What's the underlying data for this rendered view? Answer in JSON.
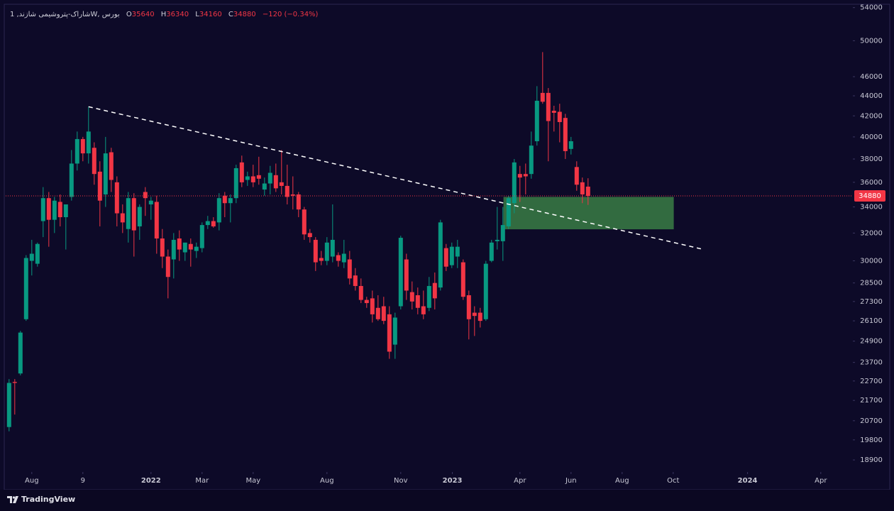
{
  "chart_data": {
    "type": "candlestick",
    "symbol": "شاراک-پتروشیمی شازند, 1W, بورس",
    "ohlc_labels": [
      "O",
      "H",
      "L",
      "C"
    ],
    "change_text": "−120 (−0.34%)",
    "up_color": "#089981",
    "down_color": "#f23645",
    "log_scale": true,
    "xlim": [
      -0.6,
      148.4
    ],
    "ylim": [
      18380,
      54240
    ],
    "xticks": [
      {
        "value": 4,
        "label": "Aug"
      },
      {
        "value": 13,
        "label": "9"
      },
      {
        "value": 25,
        "label": "2022"
      },
      {
        "value": 34,
        "label": "Mar"
      },
      {
        "value": 43,
        "label": "May"
      },
      {
        "value": 56,
        "label": "Aug"
      },
      {
        "value": 69,
        "label": "Nov"
      },
      {
        "value": 78.1,
        "label": "2023"
      },
      {
        "value": 90,
        "label": "Apr"
      },
      {
        "value": 99,
        "label": "Jun"
      },
      {
        "value": 108,
        "label": "Aug"
      },
      {
        "value": 117,
        "label": "Oct"
      },
      {
        "value": 130.1,
        "label": "2024"
      },
      {
        "value": 143,
        "label": "Apr"
      }
    ],
    "yticks": [
      18900,
      19800,
      20700,
      21700,
      22700,
      23700,
      24900,
      26100,
      27300,
      28500,
      30000,
      32000,
      34000,
      36000,
      38000,
      40000,
      42000,
      44000,
      46000,
      50000,
      54000
    ],
    "ohlc": [
      [
        20400,
        22800,
        20200,
        22600
      ],
      [
        22650,
        22800,
        21000,
        22600
      ],
      [
        23100,
        25500,
        23000,
        25400
      ],
      [
        26200,
        30400,
        26100,
        30200
      ],
      [
        30000,
        31500,
        29000,
        30500
      ],
      [
        29800,
        31300,
        29600,
        31200
      ],
      [
        32900,
        35600,
        31700,
        34700
      ],
      [
        34700,
        35200,
        31000,
        33000
      ],
      [
        33000,
        34800,
        32000,
        34500
      ],
      [
        34400,
        35000,
        32500,
        33200
      ],
      [
        33200,
        34000,
        30800,
        34200
      ],
      [
        34800,
        38800,
        34500,
        37600
      ],
      [
        37600,
        40500,
        37000,
        39800
      ],
      [
        39800,
        40000,
        37800,
        38500
      ],
      [
        38500,
        42900,
        37600,
        40500
      ],
      [
        39000,
        39500,
        35800,
        36700
      ],
      [
        36900,
        37800,
        32500,
        34500
      ],
      [
        35000,
        40000,
        34000,
        38500
      ],
      [
        38600,
        39000,
        35200,
        36200
      ],
      [
        36000,
        36500,
        32500,
        33500
      ],
      [
        33500,
        34200,
        32000,
        32800
      ],
      [
        32300,
        35200,
        31300,
        34700
      ],
      [
        34700,
        35100,
        30300,
        32200
      ],
      [
        32500,
        34200,
        31500,
        34000
      ],
      [
        35200,
        35600,
        33300,
        34700
      ],
      [
        34200,
        34800,
        33000,
        34500
      ],
      [
        34400,
        34900,
        30500,
        31600
      ],
      [
        31600,
        32300,
        29500,
        30300
      ],
      [
        30300,
        30800,
        27500,
        28900
      ],
      [
        30100,
        32000,
        28800,
        31500
      ],
      [
        31600,
        32200,
        30000,
        30800
      ],
      [
        30600,
        31200,
        30000,
        31300
      ],
      [
        31200,
        31600,
        29600,
        30800
      ],
      [
        30700,
        31300,
        30200,
        31000
      ],
      [
        30900,
        32800,
        30600,
        32600
      ],
      [
        32600,
        33300,
        32300,
        32900
      ],
      [
        32900,
        33200,
        32400,
        32500
      ],
      [
        32800,
        35100,
        32200,
        34700
      ],
      [
        34900,
        35200,
        33200,
        34300
      ],
      [
        34300,
        35000,
        32800,
        34700
      ],
      [
        34700,
        37500,
        34300,
        37200
      ],
      [
        37700,
        38300,
        35600,
        36000
      ],
      [
        36200,
        36900,
        35700,
        36500
      ],
      [
        36500,
        37500,
        35600,
        36000
      ],
      [
        36600,
        38200,
        35800,
        36300
      ],
      [
        35400,
        36400,
        34900,
        35900
      ],
      [
        35900,
        37400,
        35000,
        36800
      ],
      [
        36600,
        37600,
        35200,
        35500
      ],
      [
        36000,
        38800,
        35000,
        35700
      ],
      [
        35700,
        37500,
        34200,
        34800
      ],
      [
        35000,
        36500,
        33800,
        34900
      ],
      [
        35000,
        35200,
        33200,
        33800
      ],
      [
        33800,
        34000,
        31500,
        31900
      ],
      [
        32000,
        32300,
        31300,
        31700
      ],
      [
        31500,
        31700,
        29300,
        29900
      ],
      [
        30200,
        30700,
        29700,
        30000
      ],
      [
        30000,
        31700,
        29700,
        31300
      ],
      [
        30300,
        34200,
        29900,
        31500
      ],
      [
        30400,
        30600,
        29600,
        30000
      ],
      [
        29900,
        31500,
        29500,
        30500
      ],
      [
        30100,
        30700,
        28400,
        28800
      ],
      [
        29000,
        29500,
        28000,
        28300
      ],
      [
        28300,
        28800,
        27200,
        27400
      ],
      [
        27400,
        27600,
        26900,
        27200
      ],
      [
        27500,
        28000,
        26000,
        26500
      ],
      [
        26900,
        27700,
        26100,
        26200
      ],
      [
        27000,
        27600,
        25900,
        26100
      ],
      [
        26500,
        27000,
        23900,
        24300
      ],
      [
        24700,
        26600,
        23900,
        26300
      ],
      [
        27000,
        31800,
        26800,
        31650
      ],
      [
        30100,
        30500,
        27400,
        28000
      ],
      [
        27900,
        28600,
        26800,
        27300
      ],
      [
        27700,
        28200,
        26500,
        26900
      ],
      [
        27000,
        28000,
        26200,
        26500
      ],
      [
        26900,
        28900,
        26700,
        28300
      ],
      [
        28500,
        29200,
        26800,
        27500
      ],
      [
        28200,
        33000,
        28000,
        32800
      ],
      [
        30900,
        31200,
        29300,
        29600
      ],
      [
        29700,
        31300,
        29500,
        31000
      ],
      [
        30300,
        31500,
        29500,
        31000
      ],
      [
        29900,
        30100,
        27400,
        27600
      ],
      [
        27700,
        28000,
        25000,
        26200
      ],
      [
        26600,
        27000,
        25200,
        26400
      ],
      [
        26600,
        26900,
        25700,
        26100
      ],
      [
        26200,
        30000,
        26100,
        29800
      ],
      [
        30000,
        31500,
        29900,
        31300
      ],
      [
        31400,
        34000,
        30800,
        31500
      ],
      [
        31400,
        34000,
        30000,
        32600
      ],
      [
        32500,
        34900,
        32300,
        34700
      ],
      [
        34300,
        38000,
        33500,
        37700
      ],
      [
        36700,
        37400,
        34400,
        36400
      ],
      [
        36700,
        37600,
        35000,
        36500
      ],
      [
        36700,
        40500,
        36300,
        39200
      ],
      [
        39600,
        45000,
        39200,
        43500
      ],
      [
        44300,
        48700,
        43200,
        43400
      ],
      [
        44300,
        44800,
        37800,
        41500
      ],
      [
        42500,
        43000,
        40500,
        42300
      ],
      [
        42400,
        43200,
        39500,
        41400
      ],
      [
        41800,
        42200,
        38000,
        38700
      ],
      [
        38900,
        40000,
        38400,
        39600
      ],
      [
        37300,
        37800,
        35300,
        35800
      ],
      [
        36000,
        36400,
        34300,
        35000
      ],
      [
        35640,
        36340,
        34160,
        34880
      ]
    ],
    "trendline": [
      [
        14,
        42900
      ],
      [
        122.1,
        30830
      ]
    ],
    "zone": {
      "x": [
        87.1,
        117.1
      ],
      "y": [
        32280,
        34800
      ],
      "color": "#3a7d44"
    },
    "branding": "TradingView"
  }
}
